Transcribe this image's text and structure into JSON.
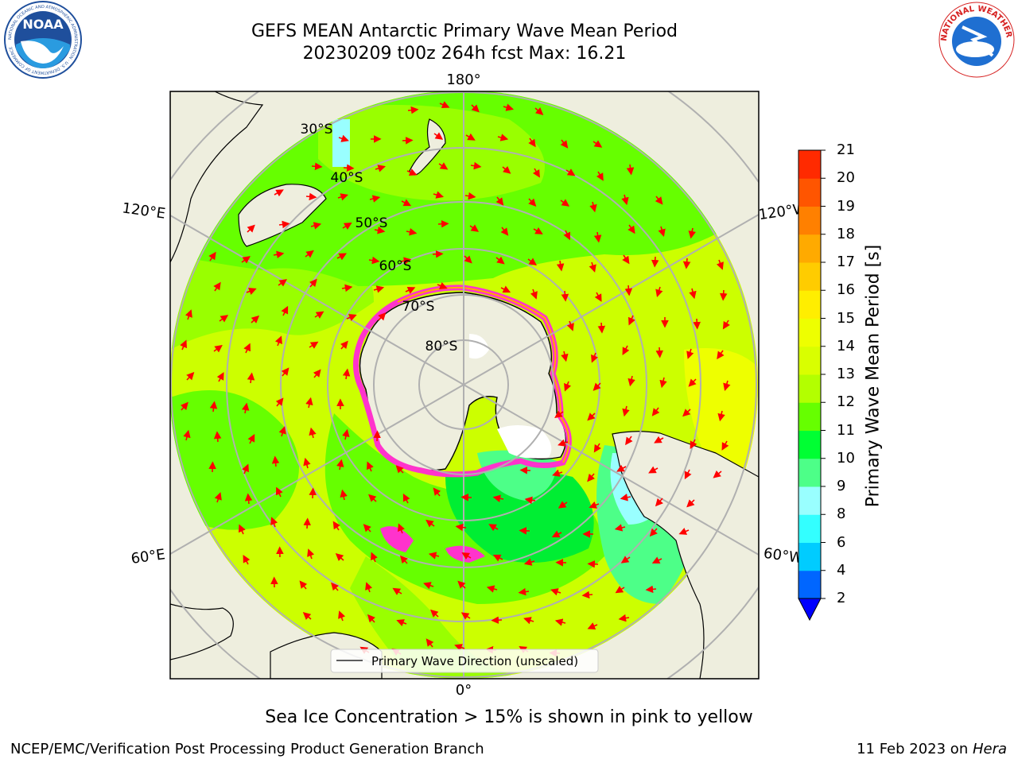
{
  "title": {
    "line1": "GEFS MEAN Antarctic Primary Wave Mean Period",
    "line2": "20230209 t00z 264h fcst   Max: 16.21"
  },
  "logos": {
    "left": "NOAA",
    "right": "NATIONAL WEATHER SERVICE",
    "left_ring_text": "NATIONAL OCEANIC AND ATMOSPHERIC ADMINISTRATION · U.S. DEPARTMENT OF COMMERCE"
  },
  "map": {
    "lon_labels": {
      "top": "180°",
      "bottom": "0°",
      "left_upper": "120°E",
      "left_lower": "60°E",
      "right_upper": "120°W",
      "right_lower": "60°W"
    },
    "lat_labels": [
      "30°S",
      "40°S",
      "50°S",
      "60°S",
      "70°S",
      "80°S"
    ],
    "legend": "Primary Wave Direction (unscaled)",
    "projection": "south polar stereographic",
    "arrow_color": "#ff0000"
  },
  "colorbar": {
    "label": "Primary Wave Mean Period [s]",
    "ticks": [
      "2",
      "4",
      "6",
      "8",
      "9",
      "10",
      "11",
      "12",
      "13",
      "14",
      "15",
      "16",
      "17",
      "18",
      "19",
      "20",
      "21"
    ],
    "colors": [
      "#0066ff",
      "#00ccff",
      "#33ffff",
      "#99ffff",
      "#4dff88",
      "#00ff33",
      "#66ff00",
      "#b3ff00",
      "#d9ff00",
      "#eeff00",
      "#ffee00",
      "#ffcc00",
      "#ffaa00",
      "#ff8000",
      "#ff5500",
      "#ff2a00"
    ],
    "under_color": "#0000ff"
  },
  "caption": "Sea Ice Concentration > 15% is shown in pink to yellow",
  "footer": {
    "left": "NCEP/EMC/Verification Post Processing Product Generation Branch",
    "right_date": "11 Feb 2023 on ",
    "right_host": "Hera"
  }
}
